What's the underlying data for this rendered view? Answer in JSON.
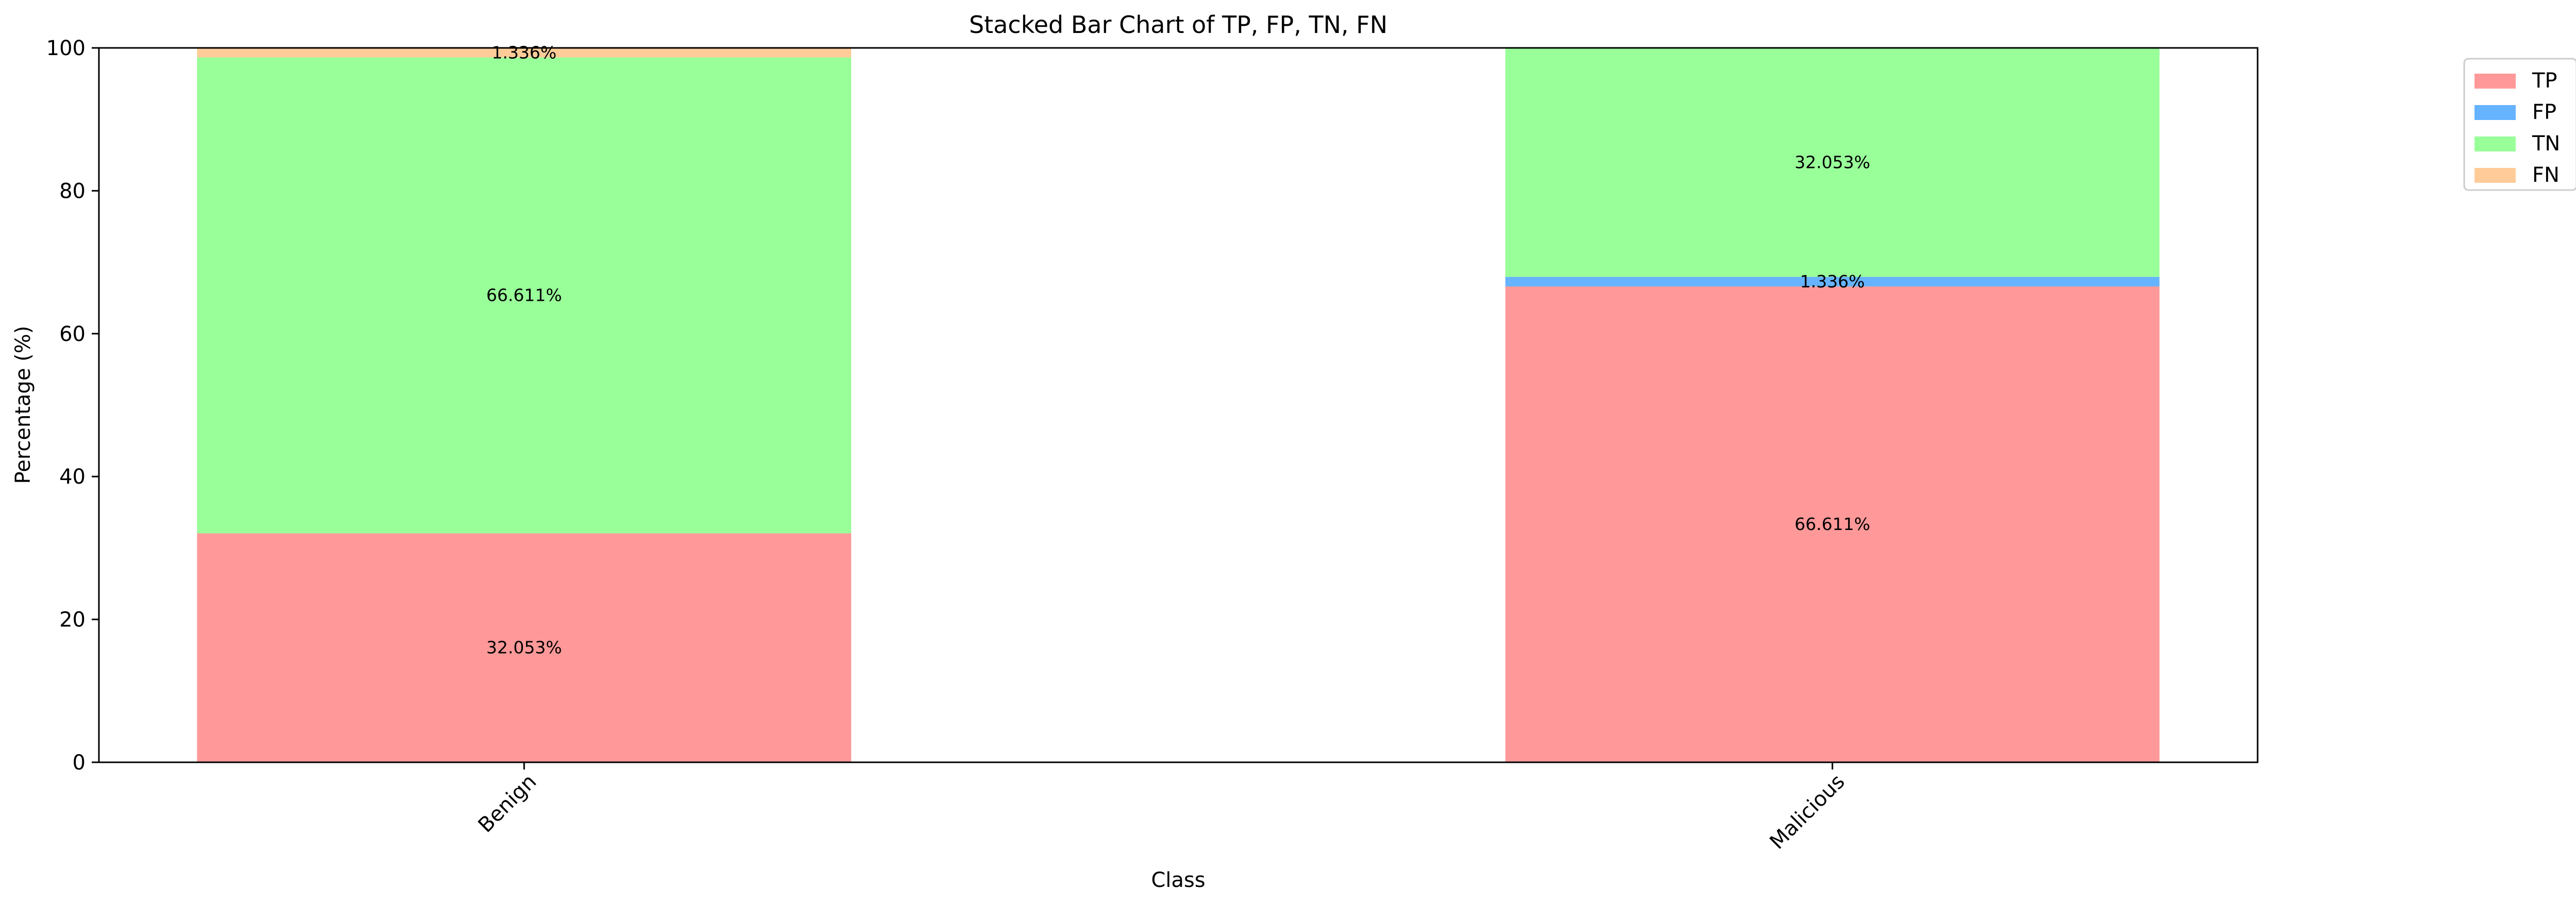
{
  "chart_data": {
    "type": "bar",
    "stacked": true,
    "title": "Stacked Bar Chart of TP, FP, TN, FN",
    "xlabel": "Class",
    "ylabel": "Percentage (%)",
    "ylim": [
      0,
      100
    ],
    "yticks": [
      0,
      20,
      40,
      60,
      80,
      100
    ],
    "categories": [
      "Benign",
      "Malicious"
    ],
    "grid": false,
    "legend_position": "outside-top-right",
    "series": [
      {
        "name": "TP",
        "color": "#ff9999",
        "values": [
          32.053,
          66.611
        ],
        "labels": [
          "32.053%",
          "66.611%"
        ]
      },
      {
        "name": "FP",
        "color": "#66b3ff",
        "values": [
          0,
          1.336
        ],
        "labels": [
          "",
          "1.336%"
        ]
      },
      {
        "name": "TN",
        "color": "#99ff99",
        "values": [
          66.611,
          32.053
        ],
        "labels": [
          "66.611%",
          "32.053%"
        ]
      },
      {
        "name": "FN",
        "color": "#ffcc99",
        "values": [
          1.336,
          0
        ],
        "labels": [
          "1.336%",
          ""
        ]
      }
    ]
  }
}
